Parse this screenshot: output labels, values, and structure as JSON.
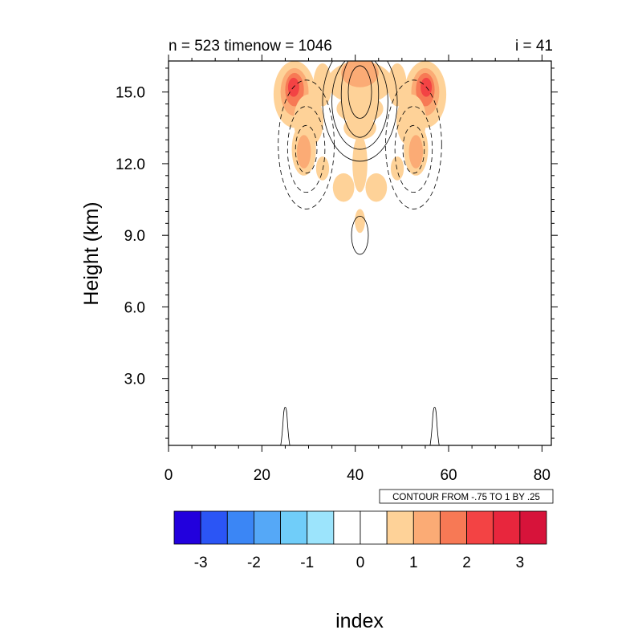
{
  "chart_data": {
    "type": "contour",
    "title_left": "n = 523 timenow = 1046",
    "title_right": "i = 41",
    "xlabel": "index",
    "ylabel": "Height (km)",
    "xlim": [
      0,
      82
    ],
    "ylim": [
      0.2,
      16.3
    ],
    "xticks": [
      0,
      20,
      40,
      60,
      80
    ],
    "xtick_labels": [
      "0",
      "20",
      "40",
      "60",
      "80"
    ],
    "yticks": [
      3,
      6,
      9,
      12,
      15
    ],
    "ytick_labels": [
      "3.0",
      "6.0",
      "9.0",
      "12.0",
      "15.0"
    ],
    "contour_info": "CONTOUR FROM -.75 TO 1 BY .25",
    "filled_regions": [
      {
        "x": 27,
        "y": 14.9,
        "rx": 4.5,
        "ry": 1.4,
        "level": 1
      },
      {
        "x": 27,
        "y": 15.0,
        "rx": 3.0,
        "ry": 1.0,
        "level": 2
      },
      {
        "x": 27,
        "y": 15.1,
        "rx": 2.0,
        "ry": 0.7,
        "level": 3
      },
      {
        "x": 26.8,
        "y": 15.2,
        "rx": 1.2,
        "ry": 0.4,
        "level": 4
      },
      {
        "x": 55,
        "y": 14.9,
        "rx": 4.5,
        "ry": 1.4,
        "level": 1
      },
      {
        "x": 55,
        "y": 15.0,
        "rx": 3.0,
        "ry": 1.0,
        "level": 2
      },
      {
        "x": 55,
        "y": 15.1,
        "rx": 2.0,
        "ry": 0.7,
        "level": 3
      },
      {
        "x": 55.2,
        "y": 15.2,
        "rx": 1.2,
        "ry": 0.4,
        "level": 4
      },
      {
        "x": 41,
        "y": 15.4,
        "rx": 7.0,
        "ry": 0.9,
        "level": 1
      },
      {
        "x": 41,
        "y": 15.8,
        "rx": 4.0,
        "ry": 0.6,
        "level": 2
      },
      {
        "x": 33,
        "y": 15.3,
        "rx": 2.0,
        "ry": 0.9,
        "level": 1
      },
      {
        "x": 49,
        "y": 15.3,
        "rx": 2.0,
        "ry": 0.9,
        "level": 1
      },
      {
        "x": 41,
        "y": 14.3,
        "rx": 5.0,
        "ry": 0.6,
        "level": 1
      },
      {
        "x": 41,
        "y": 13.5,
        "rx": 3.5,
        "ry": 0.5,
        "level": 1
      },
      {
        "x": 30,
        "y": 13.8,
        "rx": 3.2,
        "ry": 1.1,
        "level": 1
      },
      {
        "x": 52,
        "y": 13.8,
        "rx": 3.2,
        "ry": 1.1,
        "level": 1
      },
      {
        "x": 29,
        "y": 12.6,
        "rx": 2.6,
        "ry": 1.1,
        "level": 1
      },
      {
        "x": 29,
        "y": 12.5,
        "rx": 1.5,
        "ry": 0.7,
        "level": 2
      },
      {
        "x": 53,
        "y": 12.6,
        "rx": 2.6,
        "ry": 1.1,
        "level": 1
      },
      {
        "x": 53,
        "y": 12.5,
        "rx": 1.5,
        "ry": 0.7,
        "level": 2
      },
      {
        "x": 41,
        "y": 12.0,
        "rx": 1.6,
        "ry": 1.2,
        "level": 1
      },
      {
        "x": 37.5,
        "y": 11.0,
        "rx": 2.3,
        "ry": 0.6,
        "level": 1
      },
      {
        "x": 44.5,
        "y": 11.0,
        "rx": 2.3,
        "ry": 0.6,
        "level": 1
      },
      {
        "x": 33,
        "y": 11.8,
        "rx": 1.4,
        "ry": 0.5,
        "level": 1
      },
      {
        "x": 49,
        "y": 11.8,
        "rx": 1.4,
        "ry": 0.5,
        "level": 1
      },
      {
        "x": 41,
        "y": 9.6,
        "rx": 1.1,
        "ry": 0.5,
        "level": 1
      }
    ],
    "solid_contours": [
      {
        "x": 41,
        "y": 9.0,
        "rx": 1.8,
        "ry": 0.8
      },
      {
        "x": 41,
        "y": 15.0,
        "rx": 2.5,
        "ry": 1.1
      },
      {
        "x": 41,
        "y": 14.9,
        "rx": 4.0,
        "ry": 1.8
      },
      {
        "x": 41,
        "y": 14.6,
        "rx": 6.0,
        "ry": 2.0
      },
      {
        "x": 41,
        "y": 14.6,
        "rx": 8.0,
        "ry": 2.5
      }
    ],
    "dashed_contours": [
      {
        "x": 29.5,
        "y": 12.6,
        "rx": 2.3,
        "ry": 1.0
      },
      {
        "x": 29.5,
        "y": 12.6,
        "rx": 4.0,
        "ry": 1.8
      },
      {
        "x": 29.5,
        "y": 12.8,
        "rx": 6.0,
        "ry": 2.7
      },
      {
        "x": 52.5,
        "y": 12.6,
        "rx": 2.3,
        "ry": 1.0
      },
      {
        "x": 52.5,
        "y": 12.6,
        "rx": 4.0,
        "ry": 1.8
      },
      {
        "x": 52.5,
        "y": 12.8,
        "rx": 6.0,
        "ry": 2.7
      }
    ],
    "ground_peaks": [
      {
        "x": 25,
        "height": 1.8
      },
      {
        "x": 57,
        "height": 1.8
      }
    ],
    "colorbar": {
      "colors": [
        "#2200dd",
        "#2b55f5",
        "#3b86f5",
        "#55a8f7",
        "#70cdf9",
        "#9ce4fc",
        "#ffffff",
        "#ffffff",
        "#fed298",
        "#fbab75",
        "#f77955",
        "#f34344",
        "#e8263d",
        "#d7133a"
      ],
      "labels": [
        "-3",
        "-2",
        "-1",
        "0",
        "1",
        "2",
        "3"
      ]
    }
  }
}
